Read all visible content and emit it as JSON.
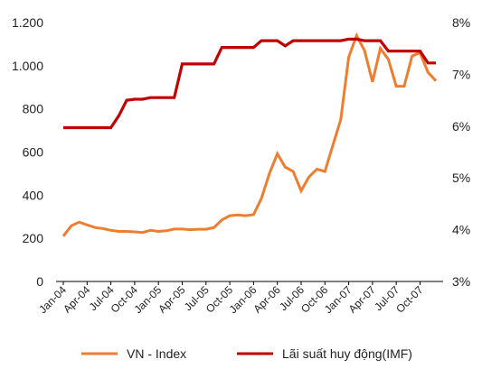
{
  "colors": {
    "vn_index": "#ed7d31",
    "lai_suat": "#c00000",
    "axis": "#000000",
    "background": "#ffffff"
  },
  "chart_data": {
    "type": "line",
    "x_months": [
      "2004-01",
      "2004-02",
      "2004-03",
      "2004-04",
      "2004-05",
      "2004-06",
      "2004-07",
      "2004-08",
      "2004-09",
      "2004-10",
      "2004-11",
      "2004-12",
      "2005-01",
      "2005-02",
      "2005-03",
      "2005-04",
      "2005-05",
      "2005-06",
      "2005-07",
      "2005-08",
      "2005-09",
      "2005-10",
      "2005-11",
      "2005-12",
      "2006-01",
      "2006-02",
      "2006-03",
      "2006-04",
      "2006-05",
      "2006-06",
      "2006-07",
      "2006-08",
      "2006-09",
      "2006-10",
      "2006-11",
      "2006-12",
      "2007-01",
      "2007-02",
      "2007-03",
      "2007-04",
      "2007-05",
      "2007-06",
      "2007-07",
      "2007-08",
      "2007-09",
      "2007-10",
      "2007-11",
      "2007-12"
    ],
    "x_tick_labels": [
      "Jan-04",
      "Apr-04",
      "Jul-04",
      "Oct-04",
      "Jan-05",
      "Apr-05",
      "Jul-05",
      "Oct-05",
      "Jan-06",
      "Apr-06",
      "Jul-06",
      "Oct-06",
      "Jan-07",
      "Apr-07",
      "Jul-07",
      "Oct-07"
    ],
    "y_left": {
      "ylim": [
        0,
        1200
      ],
      "ticks": [
        0,
        200,
        400,
        600,
        800,
        1000,
        1200
      ],
      "tick_labels": [
        "0",
        "200",
        "400",
        "600",
        "800",
        "1.000",
        "1.200"
      ]
    },
    "y_right": {
      "ylim": [
        3,
        8
      ],
      "ticks": [
        3,
        4,
        5,
        6,
        7,
        8
      ],
      "tick_labels": [
        "3%",
        "4%",
        "5%",
        "6%",
        "7%",
        "8%"
      ]
    },
    "grid": false,
    "legend_position": "bottom",
    "series": [
      {
        "name": "VN - Index",
        "axis": "left",
        "values": [
          210,
          258,
          275,
          262,
          250,
          245,
          237,
          232,
          232,
          230,
          227,
          237,
          232,
          235,
          243,
          243,
          240,
          242,
          242,
          250,
          285,
          305,
          308,
          305,
          310,
          385,
          500,
          592,
          530,
          510,
          420,
          485,
          520,
          510,
          630,
          750,
          1040,
          1140,
          1070,
          925,
          1080,
          1030,
          905,
          905,
          1045,
          1060,
          970,
          930
        ]
      },
      {
        "name": "Lãi suất huy động(IMF)",
        "axis": "right",
        "values": [
          5.97,
          5.97,
          5.97,
          5.97,
          5.97,
          5.97,
          5.97,
          6.2,
          6.5,
          6.52,
          6.52,
          6.55,
          6.55,
          6.55,
          6.55,
          7.2,
          7.2,
          7.2,
          7.2,
          7.2,
          7.52,
          7.52,
          7.52,
          7.52,
          7.52,
          7.65,
          7.65,
          7.65,
          7.55,
          7.65,
          7.65,
          7.65,
          7.65,
          7.65,
          7.65,
          7.65,
          7.68,
          7.68,
          7.65,
          7.65,
          7.65,
          7.45,
          7.45,
          7.45,
          7.45,
          7.45,
          7.22,
          7.22
        ]
      }
    ]
  }
}
